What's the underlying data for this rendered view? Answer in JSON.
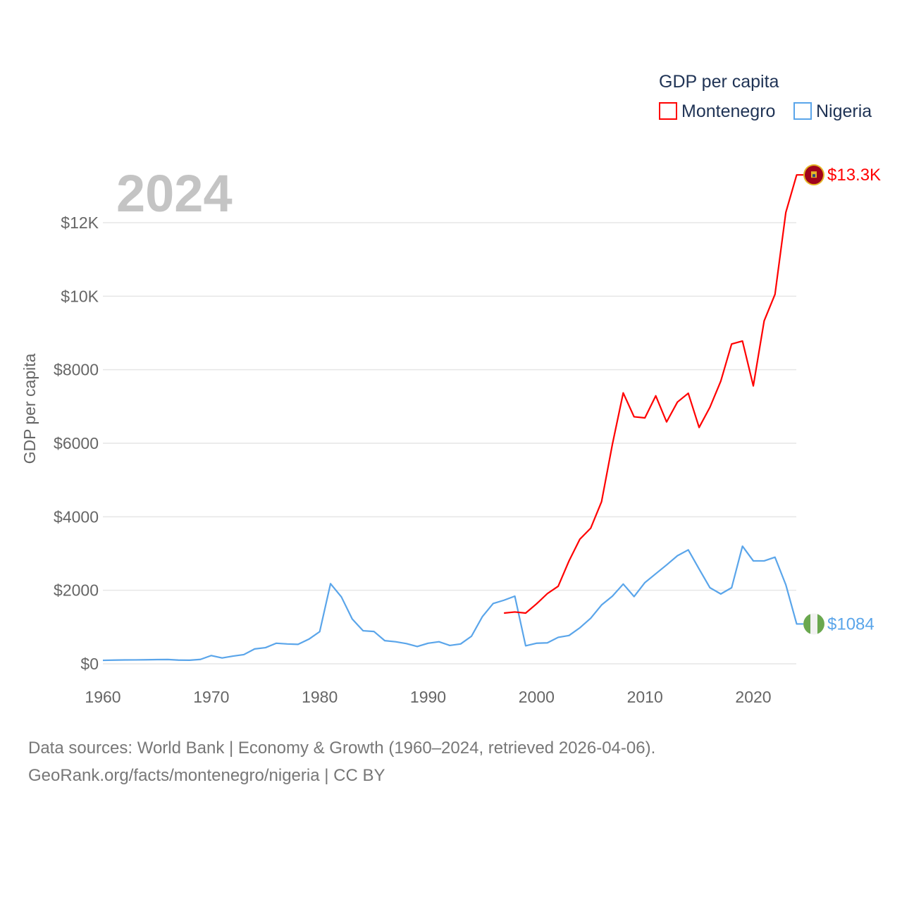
{
  "chart_data": {
    "type": "line",
    "title": "GDP per capita",
    "year_label": "2024",
    "xlabel": "",
    "ylabel": "GDP per capita",
    "xlim": [
      1960,
      2024
    ],
    "ylim": [
      0,
      13300
    ],
    "x_ticks": [
      1960,
      1970,
      1980,
      1990,
      2000,
      2010,
      2020
    ],
    "x_tick_labels": [
      "1960",
      "1970",
      "1980",
      "1990",
      "2000",
      "2010",
      "2020"
    ],
    "y_ticks": [
      0,
      2000,
      4000,
      6000,
      8000,
      10000,
      12000
    ],
    "y_tick_labels": [
      "$0",
      "$2000",
      "$4000",
      "$6000",
      "$8000",
      "$10K",
      "$12K"
    ],
    "grid": true,
    "legend_position": "top-right",
    "series": [
      {
        "name": "Montenegro",
        "color": "#ff0000",
        "end_label": "$13.3K",
        "flag": "montenegro-flag",
        "x": [
          1997,
          1998,
          1999,
          2000,
          2001,
          2002,
          2003,
          2004,
          2005,
          2006,
          2007,
          2008,
          2009,
          2010,
          2011,
          2012,
          2013,
          2014,
          2015,
          2016,
          2017,
          2018,
          2019,
          2020,
          2021,
          2022,
          2023,
          2024
        ],
        "values": [
          1380,
          1410,
          1380,
          1630,
          1910,
          2110,
          2800,
          3390,
          3690,
          4410,
          5970,
          7370,
          6720,
          6690,
          7290,
          6580,
          7120,
          7360,
          6430,
          6980,
          7690,
          8700,
          8780,
          7560,
          9330,
          10050,
          12280,
          13300
        ]
      },
      {
        "name": "Nigeria",
        "color": "#5aa5ea",
        "end_label": "$1084",
        "flag": "nigeria-flag",
        "x": [
          1960,
          1961,
          1962,
          1963,
          1964,
          1965,
          1966,
          1967,
          1968,
          1969,
          1970,
          1971,
          1972,
          1973,
          1974,
          1975,
          1976,
          1977,
          1978,
          1979,
          1980,
          1981,
          1982,
          1983,
          1984,
          1985,
          1986,
          1987,
          1988,
          1989,
          1990,
          1991,
          1992,
          1993,
          1994,
          1995,
          1996,
          1997,
          1998,
          1999,
          2000,
          2001,
          2002,
          2003,
          2004,
          2005,
          2006,
          2007,
          2008,
          2009,
          2010,
          2011,
          2012,
          2013,
          2014,
          2015,
          2016,
          2017,
          2018,
          2019,
          2020,
          2021,
          2022,
          2023,
          2024
        ],
        "values": [
          95,
          100,
          105,
          107,
          110,
          115,
          118,
          100,
          98,
          120,
          225,
          160,
          210,
          250,
          405,
          440,
          560,
          540,
          530,
          670,
          875,
          2180,
          1820,
          1220,
          900,
          880,
          630,
          600,
          550,
          470,
          560,
          600,
          500,
          540,
          750,
          1280,
          1640,
          1730,
          1840,
          490,
          560,
          570,
          720,
          770,
          980,
          1240,
          1600,
          1840,
          2170,
          1830,
          2210,
          2450,
          2690,
          2940,
          3100,
          2580,
          2070,
          1900,
          2070,
          3200,
          2800,
          2800,
          2900,
          2150,
          1084
        ]
      }
    ]
  },
  "footer": {
    "line1": "Data sources: World Bank | Economy & Growth (1960–2024, retrieved 2026-04-06).",
    "line2": "GeoRank.org/facts/montenegro/nigeria | CC BY"
  }
}
